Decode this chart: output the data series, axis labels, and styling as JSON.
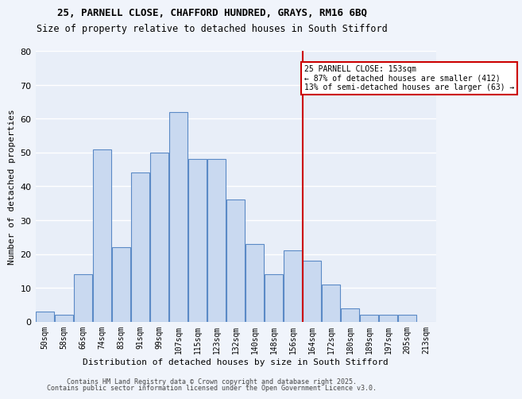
{
  "title_line1": "25, PARNELL CLOSE, CHAFFORD HUNDRED, GRAYS, RM16 6BQ",
  "title_line2": "Size of property relative to detached houses in South Stifford",
  "xlabel": "Distribution of detached houses by size in South Stifford",
  "ylabel": "Number of detached properties",
  "bins": [
    "50sqm",
    "58sqm",
    "66sqm",
    "74sqm",
    "83sqm",
    "91sqm",
    "99sqm",
    "107sqm",
    "115sqm",
    "123sqm",
    "132sqm",
    "140sqm",
    "148sqm",
    "156sqm",
    "164sqm",
    "172sqm",
    "180sqm",
    "189sqm",
    "197sqm",
    "205sqm",
    "213sqm"
  ],
  "values": [
    3,
    2,
    14,
    51,
    22,
    44,
    50,
    62,
    48,
    48,
    36,
    23,
    14,
    21,
    18,
    11,
    4,
    2,
    2,
    2,
    0
  ],
  "bar_color": "#c9d9f0",
  "bar_edge_color": "#5b8ac6",
  "property_line_x": 13.5,
  "property_line_label": "25 PARNELL CLOSE: 153sqm",
  "annotation_line1": "← 87% of detached houses are smaller (412)",
  "annotation_line2": "13% of semi-detached houses are larger (63) →",
  "annotation_box_color": "#ffffff",
  "annotation_box_edge_color": "#cc0000",
  "line_color": "#cc0000",
  "ylim": [
    0,
    80
  ],
  "yticks": [
    0,
    10,
    20,
    30,
    40,
    50,
    60,
    70,
    80
  ],
  "background_color": "#e8eef8",
  "grid_color": "#ffffff",
  "footer_line1": "Contains HM Land Registry data © Crown copyright and database right 2025.",
  "footer_line2": "Contains public sector information licensed under the Open Government Licence v3.0."
}
